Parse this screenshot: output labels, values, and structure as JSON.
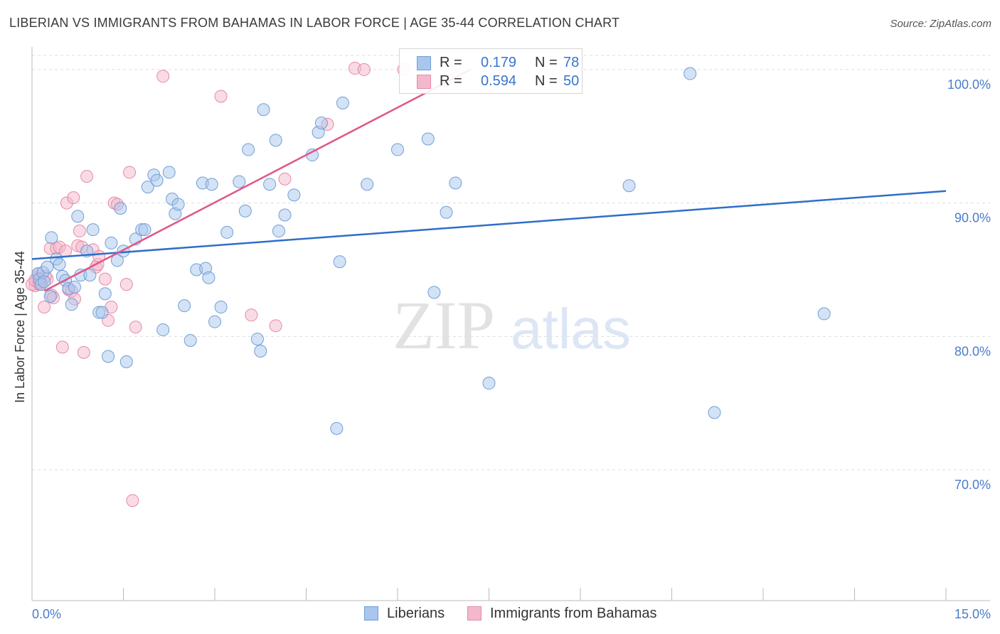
{
  "header": {
    "title": "LIBERIAN VS IMMIGRANTS FROM BAHAMAS IN LABOR FORCE | AGE 35-44 CORRELATION CHART",
    "source": "Source: ZipAtlas.com"
  },
  "watermark": {
    "zip": "ZIP",
    "atlas": "atlas"
  },
  "legend": {
    "r_label": "R =",
    "n_label": "N =",
    "series": [
      {
        "name": "Liberians",
        "r": "0.179",
        "n": "78"
      },
      {
        "name": "Immigrants from Bahamas",
        "r": "0.594",
        "n": "50"
      }
    ]
  },
  "colors": {
    "blue_fill": "#a9c6ec",
    "blue_stroke": "#6f9fd8",
    "blue_line": "#2f6ec8",
    "pink_fill": "#f4b8cb",
    "pink_stroke": "#e48aa7",
    "pink_line": "#e0578a",
    "tick_text": "#4a7cc9",
    "grid": "#dddddd"
  },
  "chart_data": {
    "type": "scatter",
    "title": "LIBERIAN VS IMMIGRANTS FROM BAHAMAS IN LABOR FORCE | AGE 35-44 CORRELATION CHART",
    "xlabel": "",
    "ylabel": "In Labor Force | Age 35-44",
    "xlim": [
      0,
      15
    ],
    "ylim": [
      60.2,
      101.7
    ],
    "x_tick_labels": [
      "0.0%",
      "15.0%"
    ],
    "y_ticks": [
      70,
      80,
      90,
      100
    ],
    "y_tick_labels": [
      "70.0%",
      "80.0%",
      "90.0%",
      "100.0%"
    ],
    "grid": true,
    "series": [
      {
        "name": "Liberians",
        "color": "blue",
        "points": [
          [
            0.1,
            84.7
          ],
          [
            0.12,
            84.3
          ],
          [
            0.15,
            83.9
          ],
          [
            0.18,
            84.8
          ],
          [
            0.2,
            84.1
          ],
          [
            0.25,
            85.2
          ],
          [
            0.3,
            83.0
          ],
          [
            0.32,
            87.4
          ],
          [
            0.4,
            85.8
          ],
          [
            0.45,
            85.4
          ],
          [
            0.5,
            84.5
          ],
          [
            0.55,
            84.2
          ],
          [
            0.6,
            83.6
          ],
          [
            0.65,
            82.4
          ],
          [
            0.7,
            83.7
          ],
          [
            0.75,
            89.0
          ],
          [
            0.8,
            84.6
          ],
          [
            0.9,
            86.4
          ],
          [
            0.95,
            84.6
          ],
          [
            1.0,
            88.0
          ],
          [
            1.1,
            81.8
          ],
          [
            1.15,
            81.8
          ],
          [
            1.2,
            83.2
          ],
          [
            1.25,
            78.5
          ],
          [
            1.3,
            87.0
          ],
          [
            1.4,
            85.7
          ],
          [
            1.45,
            89.6
          ],
          [
            1.5,
            86.4
          ],
          [
            1.55,
            78.1
          ],
          [
            1.7,
            87.3
          ],
          [
            1.8,
            88.0
          ],
          [
            1.85,
            88.0
          ],
          [
            1.9,
            91.2
          ],
          [
            2.0,
            92.1
          ],
          [
            2.05,
            91.7
          ],
          [
            2.15,
            80.5
          ],
          [
            2.25,
            92.3
          ],
          [
            2.3,
            90.3
          ],
          [
            2.35,
            89.2
          ],
          [
            2.4,
            89.9
          ],
          [
            2.5,
            82.3
          ],
          [
            2.6,
            79.7
          ],
          [
            2.7,
            85.0
          ],
          [
            2.8,
            91.5
          ],
          [
            2.85,
            85.1
          ],
          [
            2.9,
            84.4
          ],
          [
            2.95,
            91.4
          ],
          [
            3.0,
            81.1
          ],
          [
            3.1,
            82.2
          ],
          [
            3.2,
            87.8
          ],
          [
            3.4,
            91.6
          ],
          [
            3.5,
            89.4
          ],
          [
            3.55,
            94.0
          ],
          [
            3.7,
            79.8
          ],
          [
            3.75,
            78.9
          ],
          [
            3.8,
            97.0
          ],
          [
            3.9,
            91.4
          ],
          [
            4.0,
            94.7
          ],
          [
            4.05,
            87.9
          ],
          [
            4.15,
            89.1
          ],
          [
            4.3,
            90.6
          ],
          [
            4.6,
            93.6
          ],
          [
            4.7,
            95.3
          ],
          [
            4.75,
            96.0
          ],
          [
            5.0,
            73.1
          ],
          [
            5.05,
            85.6
          ],
          [
            5.1,
            97.5
          ],
          [
            5.5,
            91.4
          ],
          [
            6.0,
            94.0
          ],
          [
            6.5,
            94.8
          ],
          [
            6.6,
            83.3
          ],
          [
            6.8,
            89.3
          ],
          [
            6.95,
            91.5
          ],
          [
            7.5,
            76.5
          ],
          [
            9.8,
            91.3
          ],
          [
            10.8,
            99.7
          ],
          [
            11.2,
            74.3
          ],
          [
            13.0,
            81.7
          ]
        ],
        "trend": {
          "x": [
            0,
            15
          ],
          "y": [
            85.8,
            90.9
          ]
        }
      },
      {
        "name": "Immigrants from Bahamas",
        "color": "pink",
        "points": [
          [
            0.05,
            83.8
          ],
          [
            0.08,
            84.4
          ],
          [
            0.1,
            84.7
          ],
          [
            0.12,
            83.9
          ],
          [
            0.15,
            84.1
          ],
          [
            0.2,
            82.2
          ],
          [
            0.25,
            84.3
          ],
          [
            0.3,
            86.6
          ],
          [
            0.32,
            83.1
          ],
          [
            0.35,
            82.9
          ],
          [
            0.4,
            86.6
          ],
          [
            0.45,
            86.7
          ],
          [
            0.5,
            79.2
          ],
          [
            0.55,
            86.4
          ],
          [
            0.57,
            90.0
          ],
          [
            0.6,
            83.5
          ],
          [
            0.65,
            83.4
          ],
          [
            0.68,
            90.4
          ],
          [
            0.7,
            82.8
          ],
          [
            0.75,
            86.8
          ],
          [
            0.78,
            87.9
          ],
          [
            0.82,
            86.7
          ],
          [
            0.85,
            78.8
          ],
          [
            0.9,
            92.0
          ],
          [
            1.0,
            86.5
          ],
          [
            1.05,
            85.2
          ],
          [
            1.08,
            85.4
          ],
          [
            1.1,
            86.0
          ],
          [
            1.2,
            84.3
          ],
          [
            1.25,
            81.2
          ],
          [
            1.3,
            82.2
          ],
          [
            1.35,
            90.0
          ],
          [
            1.4,
            89.9
          ],
          [
            1.55,
            83.9
          ],
          [
            1.6,
            92.3
          ],
          [
            1.7,
            80.7
          ],
          [
            1.65,
            67.7
          ],
          [
            2.15,
            99.5
          ],
          [
            3.1,
            98.0
          ],
          [
            3.6,
            81.6
          ],
          [
            4.0,
            80.8
          ],
          [
            4.15,
            91.8
          ],
          [
            4.85,
            95.9
          ],
          [
            5.3,
            100.1
          ],
          [
            5.45,
            100.0
          ],
          [
            6.1,
            100.0
          ],
          [
            0.0,
            83.9
          ],
          [
            0.05,
            84.2
          ],
          [
            0.12,
            84.0
          ],
          [
            0.22,
            84.5
          ]
        ],
        "trend": {
          "x": [
            0.2,
            7.2
          ],
          "y": [
            83.4,
            100.0
          ]
        }
      }
    ]
  }
}
